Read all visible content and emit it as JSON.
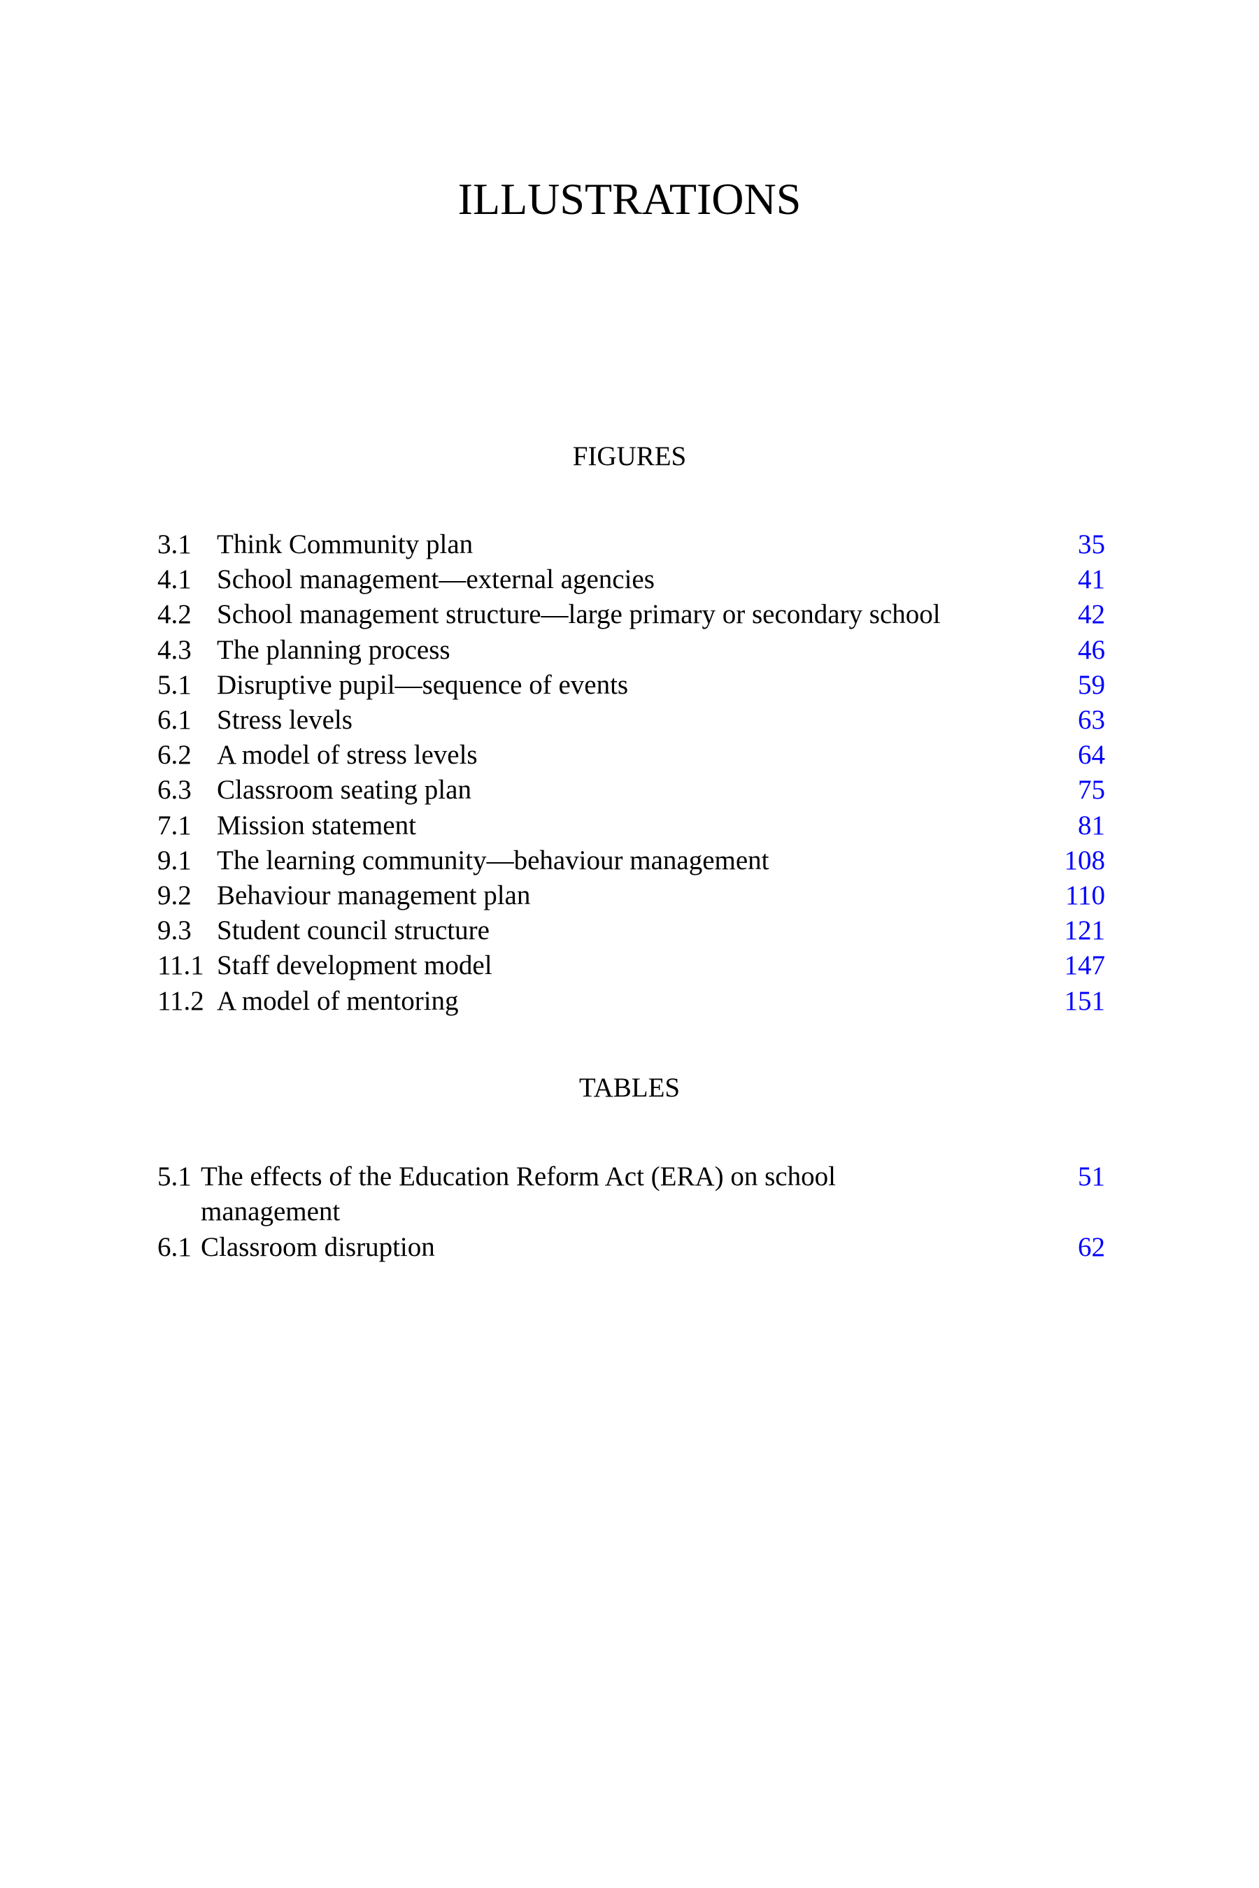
{
  "title": "ILLUSTRATIONS",
  "figures": {
    "heading": "FIGURES",
    "items": [
      {
        "number": "3.1",
        "caption": "Think Community plan",
        "page": "35"
      },
      {
        "number": "4.1",
        "caption": "School management—external agencies",
        "page": "41"
      },
      {
        "number": "4.2",
        "caption": "School management structure—large primary or secondary school",
        "page": "42"
      },
      {
        "number": "4.3",
        "caption": "The planning process",
        "page": "46"
      },
      {
        "number": "5.1",
        "caption": "Disruptive pupil—sequence of events",
        "page": "59"
      },
      {
        "number": "6.1",
        "caption": "Stress levels",
        "page": "63"
      },
      {
        "number": "6.2",
        "caption": "A model of stress levels",
        "page": "64"
      },
      {
        "number": "6.3",
        "caption": "Classroom seating plan",
        "page": "75"
      },
      {
        "number": "7.1",
        "caption": "Mission statement",
        "page": "81"
      },
      {
        "number": "9.1",
        "caption": "The learning community—behaviour management",
        "page": "108"
      },
      {
        "number": "9.2",
        "caption": "Behaviour management plan",
        "page": "110"
      },
      {
        "number": "9.3",
        "caption": "Student council structure",
        "page": "121"
      },
      {
        "number": "11.1",
        "caption": "Staff development model",
        "page": "147"
      },
      {
        "number": "11.2",
        "caption": "A model of mentoring",
        "page": "151"
      }
    ]
  },
  "tables": {
    "heading": "TABLES",
    "items": [
      {
        "number": "5.1",
        "caption": "The effects of the Education Reform Act (ERA) on school",
        "caption_cont": "management",
        "page": "51"
      },
      {
        "number": "6.1",
        "caption": "Classroom disruption",
        "page": "62"
      }
    ]
  },
  "colors": {
    "link": "#0000ff",
    "text": "#000000"
  }
}
